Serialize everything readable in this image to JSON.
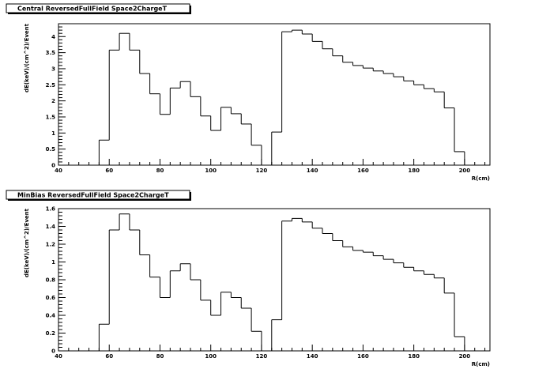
{
  "chart_data": [
    {
      "type": "histogram",
      "title": "Central ReversedFullField Space2ChargeT",
      "xlabel": "R(cm)",
      "ylabel": "dE(keV)/(cm^2)/Event",
      "xlim": [
        40,
        210
      ],
      "ylim": [
        0,
        4.4
      ],
      "xticks": [
        40,
        60,
        80,
        100,
        120,
        140,
        160,
        180,
        200
      ],
      "xtick_labels": [
        "40",
        "60",
        "80",
        "100",
        "120",
        "140",
        "160",
        "180",
        "200"
      ],
      "yticks": [
        0,
        0.5,
        1,
        1.5,
        2,
        2.5,
        3,
        3.5,
        4
      ],
      "ytick_labels": [
        "0",
        "0.5",
        "1",
        "1.5",
        "2",
        "2.5",
        "3",
        "3.5",
        "4"
      ],
      "bin_width": 4,
      "bin_edges_start": 56,
      "values": [
        0.78,
        3.58,
        4.1,
        3.58,
        2.85,
        2.22,
        1.58,
        2.4,
        2.6,
        2.13,
        1.53,
        1.08,
        1.8,
        1.6,
        1.28,
        0.62,
        0,
        1.03,
        4.15,
        4.2,
        4.08,
        3.85,
        3.62,
        3.4,
        3.2,
        3.1,
        3.02,
        2.93,
        2.85,
        2.75,
        2.62,
        2.5,
        2.38,
        2.28,
        1.78,
        0.42
      ]
    },
    {
      "type": "histogram",
      "title": "MinBias ReversedFullField Space2ChargeT",
      "xlabel": "R(cm)",
      "ylabel": "dE(keV)/(cm^2)/Event",
      "xlim": [
        40,
        210
      ],
      "ylim": [
        0,
        1.6
      ],
      "xticks": [
        40,
        60,
        80,
        100,
        120,
        140,
        160,
        180,
        200
      ],
      "xtick_labels": [
        "40",
        "60",
        "80",
        "100",
        "120",
        "140",
        "160",
        "180",
        "200"
      ],
      "yticks": [
        0,
        0.2,
        0.4,
        0.6,
        0.8,
        1,
        1.2,
        1.4,
        1.6
      ],
      "ytick_labels": [
        "0",
        "0.2",
        "0.4",
        "0.6",
        "0.8",
        "1",
        "1.2",
        "1.4",
        "1.6"
      ],
      "bin_width": 4,
      "bin_edges_start": 56,
      "values": [
        0.3,
        1.36,
        1.54,
        1.36,
        1.08,
        0.83,
        0.6,
        0.9,
        0.98,
        0.8,
        0.57,
        0.4,
        0.66,
        0.6,
        0.48,
        0.22,
        0,
        0.35,
        1.46,
        1.49,
        1.45,
        1.38,
        1.32,
        1.24,
        1.17,
        1.13,
        1.11,
        1.07,
        1.03,
        0.99,
        0.94,
        0.9,
        0.86,
        0.82,
        0.65,
        0.16
      ]
    }
  ]
}
